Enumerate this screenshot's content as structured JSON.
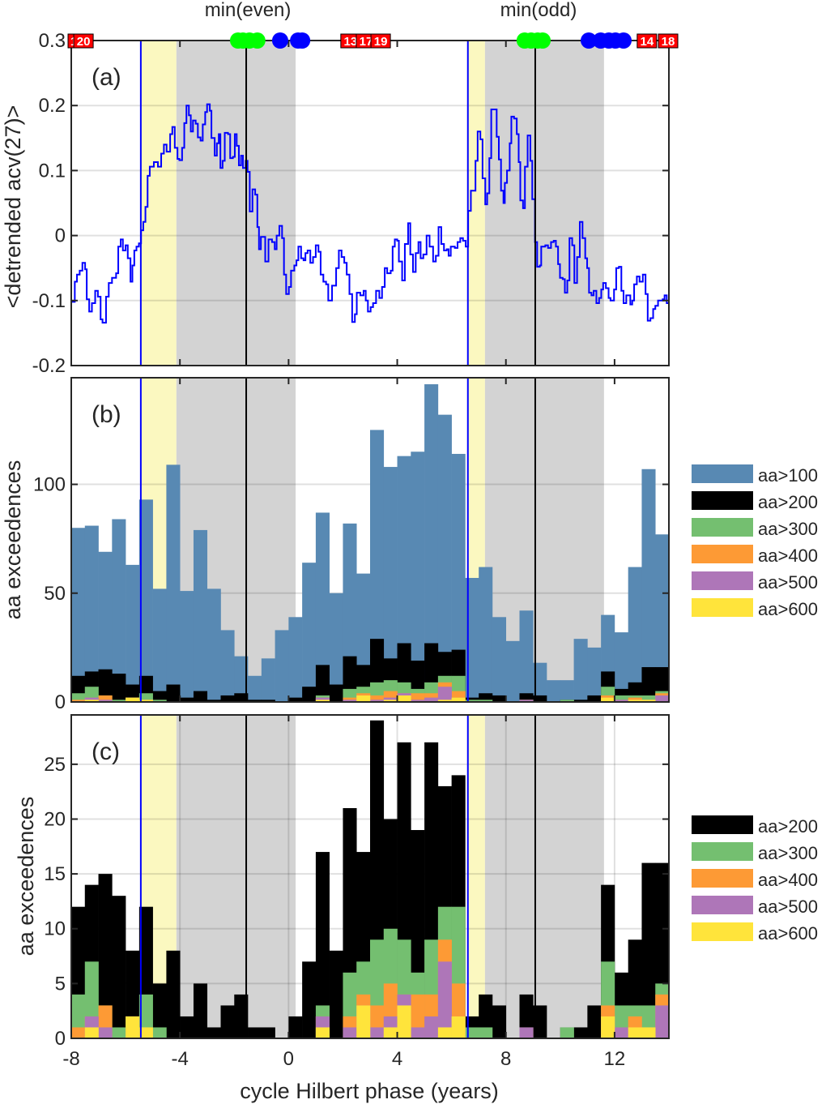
{
  "colors": {
    "aa100": "#5889b3",
    "aa200": "#000000",
    "aa300": "#74bf70",
    "aa400": "#fd9a35",
    "aa500": "#ae76b8",
    "aa600": "#ffe43b",
    "line": "#0000ff",
    "rising": "#fbf8c0",
    "declining": "#d3d3d3",
    "green_marker": "#00ff00",
    "blue_marker": "#0000ff",
    "red_box": "#ff0000"
  },
  "chart_data": [
    {
      "panel": "(a)",
      "type": "line",
      "ylabel": "<detrended acv(27)>",
      "ylim": [
        -0.2,
        0.3
      ],
      "xlim": [
        -8,
        14
      ],
      "yticks": [
        "0.3",
        "0.2",
        "0.1",
        "0",
        "-0.1",
        "-0.2"
      ],
      "ytick_values": [
        0.3,
        0.2,
        0.1,
        0,
        -0.1,
        -0.2
      ],
      "top_labels": [
        {
          "text": "min(even)",
          "x": -1.5
        },
        {
          "text": "min(odd)",
          "x": 9.2
        }
      ],
      "red_boxes": [
        {
          "text": "1",
          "x": -7.91
        },
        {
          "text": "20",
          "x": -7.55
        },
        {
          "text": "13",
          "x": 2.28
        },
        {
          "text": "17",
          "x": 2.85
        },
        {
          "text": "19",
          "x": 3.39
        },
        {
          "text": "14",
          "x": 13.19
        },
        {
          "text": "18",
          "x": 13.97
        }
      ],
      "green_markers": [
        -1.86,
        -1.68,
        -1.44,
        -1.15,
        8.69,
        8.93,
        9.17,
        9.35
      ],
      "blue_markers": [
        -0.31,
        0.35,
        0.5,
        11.05,
        11.49,
        11.79,
        12.03,
        12.33
      ],
      "x": [
        -8,
        -7.94,
        -7.87,
        -7.79,
        -7.69,
        -7.59,
        -7.49,
        -7.43,
        -7.34,
        -7.24,
        -7.12,
        -7.02,
        -6.92,
        -6.85,
        -6.72,
        -6.62,
        -6.5,
        -6.35,
        -6.27,
        -6.18,
        -6.1,
        -6,
        -5.92,
        -5.82,
        -5.75,
        -5.68,
        -5.6,
        -5.51,
        -5.43,
        -5.35,
        -5.27,
        -5.19,
        -5.11,
        -4.96,
        -4.81,
        -4.69,
        -4.59,
        -4.49,
        -4.36,
        -4.28,
        -4.19,
        -4.09,
        -4.02,
        -3.92,
        -3.84,
        -3.76,
        -3.67,
        -3.6,
        -3.52,
        -3.42,
        -3.34,
        -3.24,
        -3.16,
        -3.07,
        -3,
        -2.9,
        -2.84,
        -2.72,
        -2.64,
        -2.57,
        -2.51,
        -2.43,
        -2.35,
        -2.23,
        -2.15,
        -2.05,
        -1.98,
        -1.91,
        -1.83,
        -1.75,
        -1.68,
        -1.58,
        -1.51,
        -1.43,
        -1.33,
        -1.23,
        -1.15,
        -1.09,
        -1.02,
        -0.86,
        -0.74,
        -0.61,
        -0.51,
        -0.44,
        -0.34,
        -0.24,
        -0.17,
        -0.09,
        0.01,
        0.09,
        0.21,
        0.29,
        0.36,
        0.46,
        0.55,
        0.62,
        0.7,
        0.8,
        0.9,
        1,
        1.1,
        1.18,
        1.28,
        1.38,
        1.46,
        1.6,
        1.75,
        1.85,
        1.95,
        2.05,
        2.14,
        2.24,
        2.34,
        2.44,
        2.51,
        2.64,
        2.76,
        2.84,
        2.92,
        3.02,
        3.11,
        3.22,
        3.34,
        3.44,
        3.54,
        3.63,
        3.76,
        3.83,
        3.91,
        4,
        4.06,
        4.18,
        4.28,
        4.4,
        4.48,
        4.58,
        4.68,
        4.78,
        4.86,
        4.96,
        5.08,
        5.19,
        5.32,
        5.42,
        5.52,
        5.62,
        5.72,
        5.82,
        5.89,
        5.97,
        6.12,
        6.22,
        6.32,
        6.42,
        6.52,
        6.61,
        6.71,
        6.88,
        6.96,
        7.06,
        7.14,
        7.24,
        7.31,
        7.39,
        7.46,
        7.66,
        7.74,
        7.82,
        7.91,
        7.96,
        8.04,
        8.14,
        8.2,
        8.3,
        8.4,
        8.47,
        8.53,
        8.63,
        8.7,
        8.8,
        8.9,
        8.97,
        9.07,
        9.15,
        9.25,
        9.3,
        9.45,
        9.55,
        9.66,
        9.76,
        9.84,
        9.92,
        9.99,
        10.09,
        10.17,
        10.26,
        10.34,
        10.44,
        10.52,
        10.62,
        10.72,
        10.82,
        10.92,
        10.99,
        11.06,
        11.15,
        11.23,
        11.33,
        11.43,
        11.51,
        11.58,
        11.68,
        11.78,
        11.85,
        11.98,
        12.06,
        12.16,
        12.25,
        12.33,
        12.43,
        12.58,
        12.65,
        12.72,
        12.82,
        12.92,
        13.04,
        13.14,
        13.22,
        13.32,
        13.42,
        13.5,
        13.6,
        13.77,
        13.84,
        13.92
      ],
      "y": [
        -0.102,
        -0.102,
        -0.071,
        -0.06,
        -0.054,
        -0.042,
        -0.052,
        -0.098,
        -0.117,
        -0.104,
        -0.085,
        -0.094,
        -0.129,
        -0.134,
        -0.094,
        -0.073,
        -0.065,
        -0.058,
        -0.017,
        -0.006,
        -0.023,
        -0.015,
        -0.035,
        -0.071,
        -0.046,
        -0.023,
        -0.017,
        -0.012,
        0.008,
        0.021,
        0.044,
        0.092,
        0.106,
        0.113,
        0.106,
        0.126,
        0.14,
        0.129,
        0.156,
        0.167,
        0.135,
        0.118,
        0.116,
        0.135,
        0.173,
        0.2,
        0.185,
        0.16,
        0.177,
        0.172,
        0.151,
        0.146,
        0.171,
        0.19,
        0.202,
        0.192,
        0.15,
        0.123,
        0.142,
        0.156,
        0.104,
        0.115,
        0.158,
        0.156,
        0.119,
        0.121,
        0.156,
        0.138,
        0.108,
        0.123,
        0.104,
        0.115,
        0.098,
        0.037,
        0.071,
        0.063,
        0.013,
        -0.021,
        -0.002,
        -0.04,
        -0.006,
        -0.01,
        -0.021,
        0,
        0.015,
        -0.004,
        -0.06,
        -0.09,
        -0.079,
        -0.054,
        -0.046,
        -0.038,
        -0.017,
        -0.035,
        -0.038,
        -0.027,
        -0.023,
        -0.042,
        -0.033,
        -0.015,
        -0.025,
        -0.06,
        -0.071,
        -0.075,
        -0.1,
        -0.077,
        -0.05,
        -0.023,
        -0.033,
        -0.042,
        -0.06,
        -0.09,
        -0.133,
        -0.121,
        -0.088,
        -0.092,
        -0.085,
        -0.1,
        -0.117,
        -0.11,
        -0.104,
        -0.085,
        -0.096,
        -0.079,
        -0.05,
        -0.058,
        -0.054,
        -0.017,
        -0.006,
        -0.008,
        -0.04,
        -0.069,
        -0.013,
        0.019,
        -0.029,
        -0.056,
        -0.027,
        -0.01,
        -0.035,
        -0.029,
        0,
        -0.017,
        -0.04,
        -0.031,
        0.013,
        -0.013,
        -0.023,
        -0.021,
        -0.031,
        -0.017,
        -0.019,
        -0.01,
        -0.004,
        -0.008,
        -0.017,
        0.038,
        0.069,
        0.115,
        0.16,
        0.148,
        0.088,
        0.048,
        0.065,
        0.119,
        0.194,
        0.152,
        0.117,
        0.069,
        0.05,
        0.081,
        0.1,
        0.142,
        0.183,
        0.18,
        0.156,
        0.113,
        0.054,
        0.042,
        0.106,
        0.154,
        0.115,
        0.056,
        -0.01,
        -0.048,
        -0.046,
        -0.017,
        -0.015,
        -0.019,
        -0.01,
        -0.008,
        -0.017,
        -0.044,
        -0.065,
        -0.067,
        -0.088,
        -0.069,
        -0.004,
        -0.015,
        -0.073,
        -0.033,
        0.021,
        -0.004,
        -0.035,
        -0.05,
        -0.088,
        -0.092,
        -0.085,
        -0.104,
        -0.096,
        -0.083,
        -0.073,
        -0.081,
        -0.096,
        -0.1,
        -0.083,
        -0.05,
        -0.048,
        -0.085,
        -0.104,
        -0.092,
        -0.106,
        -0.1,
        -0.075,
        -0.063,
        -0.071,
        -0.06,
        -0.09,
        -0.131,
        -0.127,
        -0.113,
        -0.108,
        -0.1,
        -0.098,
        -0.092,
        -0.104
      ]
    },
    {
      "panel": "(b)",
      "type": "bar",
      "ylabel": "aa exceedences",
      "ylim": [
        0,
        149
      ],
      "yticks": [
        "0",
        "50",
        "100"
      ],
      "ytick_values": [
        0,
        50,
        100
      ],
      "bin_start": -8,
      "bin_width": 0.5,
      "legend": [
        "aa>100",
        "aa>200",
        "aa>300",
        "aa>400",
        "aa>500",
        "aa>600"
      ],
      "legend_placement": "outside-right",
      "series": [
        {
          "name": "aa>100",
          "values": [
            80,
            81,
            69,
            84,
            63,
            93,
            52,
            109,
            51,
            79,
            52,
            33,
            21,
            12,
            20,
            33,
            39,
            64,
            87,
            50,
            82,
            59,
            125,
            108,
            113,
            115,
            146,
            132,
            114,
            57,
            62,
            39,
            28,
            42,
            18,
            10,
            10,
            29,
            25,
            40,
            32,
            62,
            107,
            77
          ]
        },
        {
          "name": "aa>200",
          "values": [
            12,
            14,
            15,
            13,
            8,
            12,
            5,
            8,
            2,
            5,
            1,
            3,
            4,
            1,
            1,
            0,
            2,
            7,
            17,
            8,
            21,
            17,
            29,
            20,
            27,
            19,
            27,
            23,
            24,
            2,
            4,
            3,
            0,
            4,
            3,
            0,
            1,
            1,
            3,
            14,
            6,
            9,
            16,
            16
          ]
        },
        {
          "name": "aa>300",
          "values": [
            4,
            7,
            3,
            1,
            2,
            4,
            1,
            0,
            0,
            0,
            0,
            0,
            0,
            0,
            0,
            0,
            0,
            0,
            3,
            0,
            6,
            7,
            9,
            10,
            9,
            6,
            9,
            12,
            12,
            1,
            1,
            0,
            0,
            1,
            0,
            0,
            1,
            0,
            0,
            7,
            3,
            3,
            3,
            5
          ]
        },
        {
          "name": "aa>400",
          "values": [
            1,
            2,
            3,
            0,
            2,
            1,
            0,
            0,
            0,
            0,
            0,
            0,
            0,
            0,
            0,
            0,
            0,
            0,
            2,
            0,
            2,
            4,
            3,
            5,
            4,
            4,
            4,
            9,
            5,
            0,
            0,
            0,
            0,
            1,
            0,
            0,
            0,
            0,
            0,
            3,
            1,
            2,
            1,
            4
          ]
        },
        {
          "name": "aa>500",
          "values": [
            0,
            2,
            1,
            0,
            2,
            1,
            0,
            0,
            0,
            0,
            0,
            0,
            0,
            0,
            0,
            0,
            0,
            0,
            2,
            0,
            1,
            3,
            1,
            2,
            4,
            1,
            2,
            7,
            2,
            0,
            0,
            0,
            0,
            1,
            0,
            0,
            0,
            0,
            0,
            2,
            1,
            1,
            1,
            3
          ]
        },
        {
          "name": "aa>600",
          "values": [
            0,
            1,
            0,
            0,
            2,
            1,
            0,
            0,
            0,
            0,
            0,
            0,
            0,
            0,
            0,
            0,
            0,
            0,
            1,
            0,
            0,
            3,
            0,
            1,
            3,
            0,
            0,
            1,
            2,
            0,
            0,
            0,
            0,
            0,
            0,
            0,
            0,
            0,
            0,
            2,
            0,
            1,
            1,
            0
          ]
        }
      ]
    },
    {
      "panel": "(c)",
      "type": "bar",
      "ylabel": "aa exceedences",
      "xlabel": "cycle Hilbert phase (years)",
      "ylim": [
        0,
        29.5
      ],
      "yticks": [
        "0",
        "5",
        "10",
        "15",
        "20",
        "25"
      ],
      "ytick_values": [
        0,
        5,
        10,
        15,
        20,
        25
      ],
      "xticks": [
        "-8",
        "-4",
        "0",
        "4",
        "8",
        "12"
      ],
      "xtick_values": [
        -8,
        -4,
        0,
        4,
        8,
        12
      ],
      "legend": [
        "aa>200",
        "aa>300",
        "aa>400",
        "aa>500",
        "aa>600"
      ],
      "legend_placement": "outside-right",
      "series_ref": "same aa>200..aa>600 series as panel (b)"
    }
  ],
  "shading": {
    "rising": [
      [
        -5.44,
        -4.13
      ],
      [
        6.6,
        7.23
      ]
    ],
    "declining": [
      [
        -4.13,
        0.26
      ],
      [
        7.23,
        11.61
      ]
    ],
    "blue_lines": [
      -5.44,
      6.6
    ],
    "black_lines": [
      -1.56,
      9.08
    ]
  }
}
